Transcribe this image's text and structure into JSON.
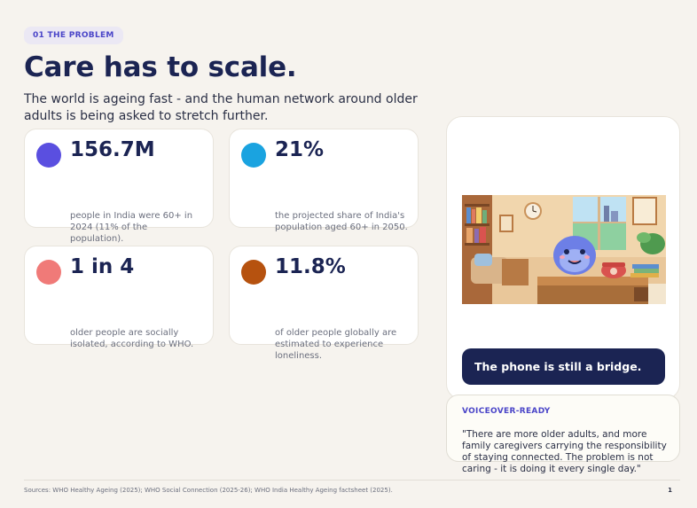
{
  "section_tag": "01  THE PROBLEM",
  "title": "Care has to scale.",
  "subtitle": "The world is ageing fast - and the human network around older adults is being asked to stretch further.",
  "stats": [
    {
      "value": "156.7M",
      "description": "people in India were 60+ in 2024 (11% of the population).",
      "color": "#5a4fe0"
    },
    {
      "value": "21%",
      "description": "the projected share of India's population aged 60+ in 2050.",
      "color": "#1aa3e0"
    },
    {
      "value": "1 in 4",
      "description": "older people are socially isolated, according to WHO.",
      "color": "#f07a78"
    },
    {
      "value": "11.8%",
      "description": "of older people globally are estimated to experience loneliness.",
      "color": "#b6520f"
    }
  ],
  "illustration_icon": "blue-mascot-phone-room-illustration",
  "bridge_text": "The phone is still a bridge.",
  "voiceover": {
    "label": "VOICEOVER-READY",
    "text": "\"There are more older adults, and more family caregivers carrying the responsibility of staying connected. The problem is not caring - it is doing it every single day.\""
  },
  "sources": "Sources: WHO Healthy Ageing (2025); WHO Social Connection (2025-26); WHO India Healthy Ageing factsheet (2025).",
  "page_number": "1",
  "colors": {
    "navy": "#1b2453",
    "accent": "#4a45c8",
    "background": "#f6f3ee"
  }
}
